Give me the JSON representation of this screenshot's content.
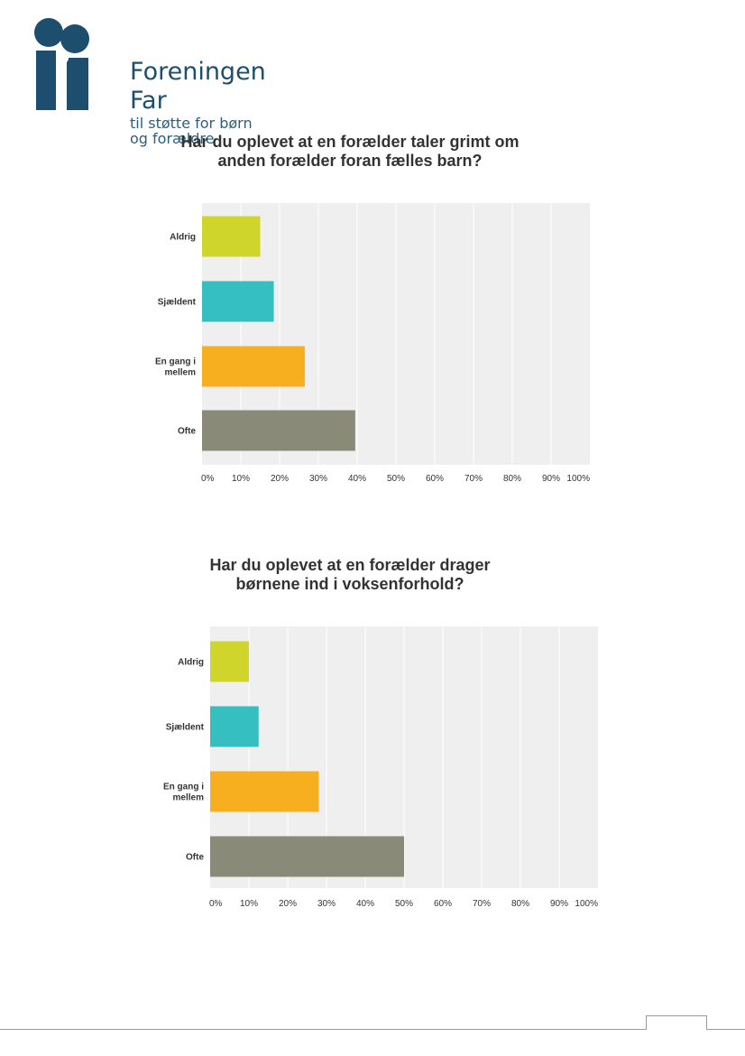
{
  "logo": {
    "name": "Foreningen Far",
    "tagline_line1": "til støtte for børn",
    "tagline_line2": "og forældre",
    "color": "#1d4e6e"
  },
  "colors": {
    "plot_background": "#efefef",
    "gridline": "#ffffff",
    "bars": [
      "#cfd52a",
      "#35bfc1",
      "#f7ae1f",
      "#8a8a78"
    ]
  },
  "chart_data": [
    {
      "type": "bar",
      "orientation": "horizontal",
      "title_line1": "Har du oplevet at en forælder taler grimt om",
      "title_line2": "anden forælder foran fælles barn?",
      "categories": [
        [
          "Aldrig"
        ],
        [
          "Sjældent"
        ],
        [
          "En gang i",
          "mellem"
        ],
        [
          "Ofte"
        ]
      ],
      "values": [
        15,
        18.5,
        26.5,
        39.5
      ],
      "xlim": [
        0,
        100
      ],
      "tick_labels": [
        "0%",
        "10%",
        "20%",
        "30%",
        "40%",
        "50%",
        "60%",
        "70%",
        "80%",
        "90%",
        "100%"
      ],
      "grid": true
    },
    {
      "type": "bar",
      "orientation": "horizontal",
      "title_line1": "Har du oplevet at en forælder drager",
      "title_line2": "børnene ind i voksenforhold?",
      "categories": [
        [
          "Aldrig"
        ],
        [
          "Sjældent"
        ],
        [
          "En gang i",
          "mellem"
        ],
        [
          "Ofte"
        ]
      ],
      "values": [
        10,
        12.5,
        28,
        50
      ],
      "xlim": [
        0,
        100
      ],
      "tick_labels": [
        "0%",
        "10%",
        "20%",
        "30%",
        "40%",
        "50%",
        "60%",
        "70%",
        "80%",
        "90%",
        "100%"
      ],
      "grid": true
    }
  ]
}
